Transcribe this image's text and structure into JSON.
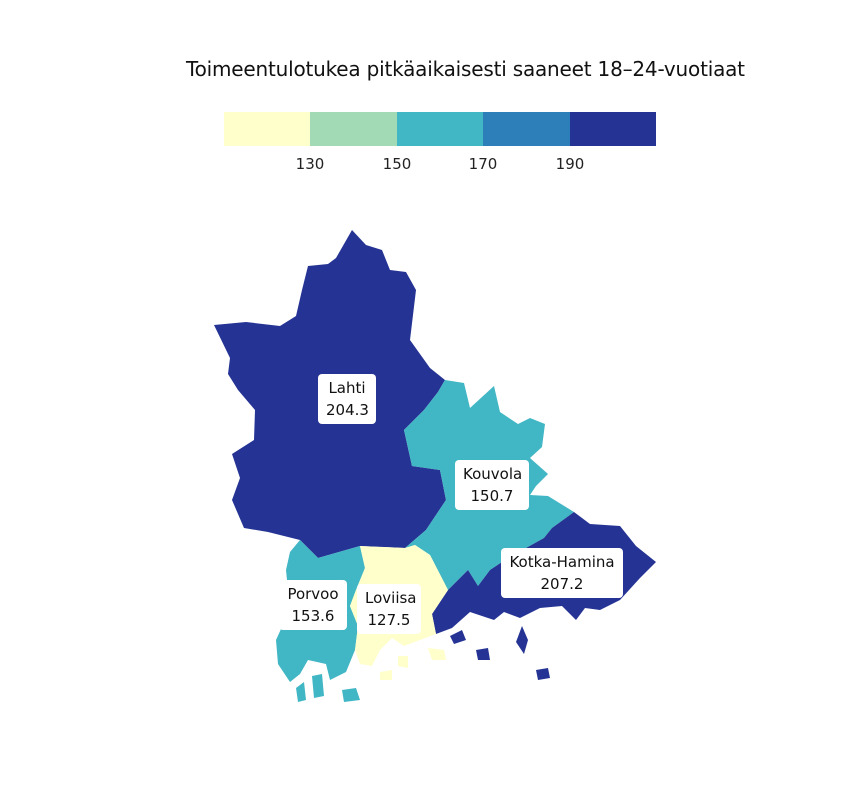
{
  "map": {
    "title": "Toimeentulotukea pitkäaikaisesti saaneet 18–24-vuotiaat",
    "legend": {
      "colors": [
        "#ffffcc",
        "#a1dab4",
        "#41b6c4",
        "#2c7fb8",
        "#253494"
      ],
      "breaks": [
        "130",
        "150",
        "170",
        "190"
      ]
    },
    "regions": [
      {
        "name": "Lahti",
        "value": "204.3",
        "color": "#253494"
      },
      {
        "name": "Kouvola",
        "value": "150.7",
        "color": "#41b6c4"
      },
      {
        "name": "Kotka-Hamina",
        "value": "207.2",
        "color": "#253494"
      },
      {
        "name": "Porvoo",
        "value": "153.6",
        "color": "#41b6c4"
      },
      {
        "name": "Loviisa",
        "value": "127.5",
        "color": "#ffffcc"
      }
    ]
  }
}
